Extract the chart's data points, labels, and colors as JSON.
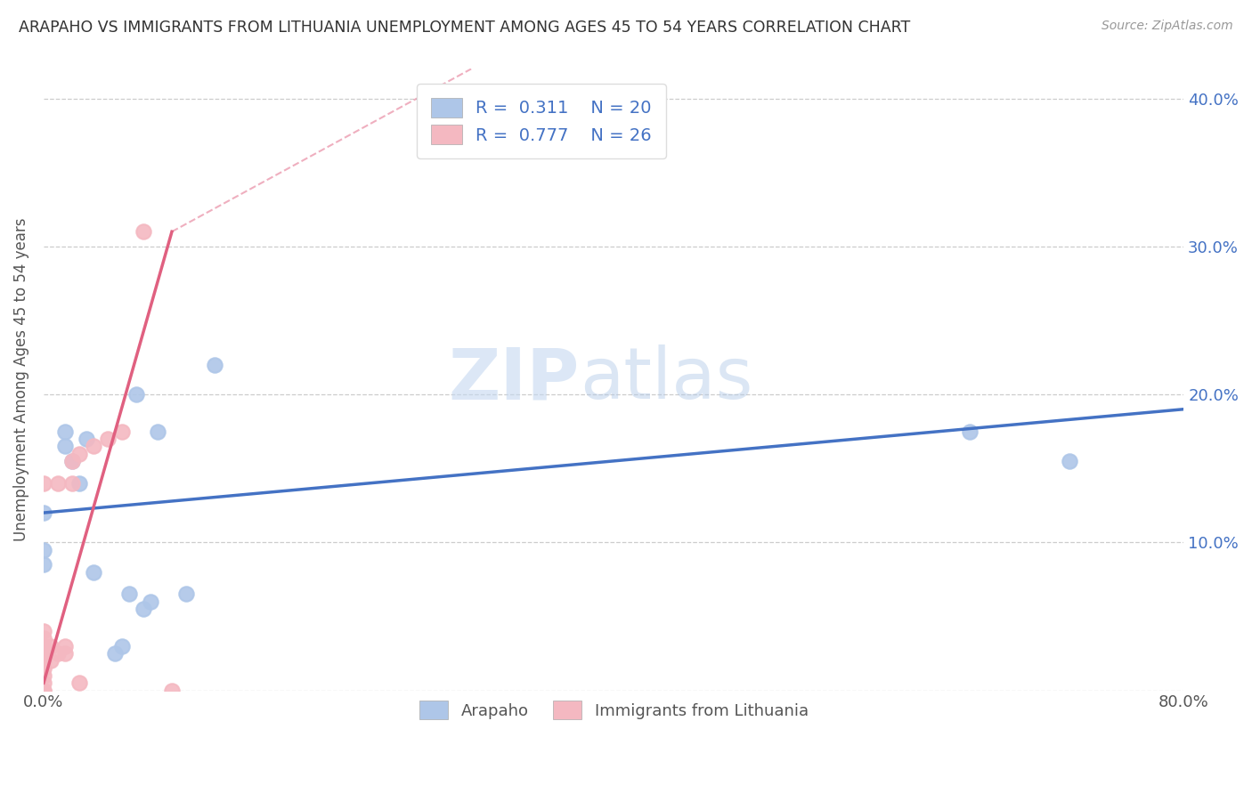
{
  "title": "ARAPAHO VS IMMIGRANTS FROM LITHUANIA UNEMPLOYMENT AMONG AGES 45 TO 54 YEARS CORRELATION CHART",
  "source": "Source: ZipAtlas.com",
  "ylabel": "Unemployment Among Ages 45 to 54 years",
  "xlim": [
    0.0,
    0.8
  ],
  "ylim": [
    0.0,
    0.42
  ],
  "xticks": [
    0.0,
    0.1,
    0.2,
    0.3,
    0.4,
    0.5,
    0.6,
    0.7,
    0.8
  ],
  "yticks": [
    0.0,
    0.1,
    0.2,
    0.3,
    0.4
  ],
  "arapaho_R": 0.311,
  "arapaho_N": 20,
  "lithuania_R": 0.777,
  "lithuania_N": 26,
  "arapaho_color": "#aec6e8",
  "lithuania_color": "#f4b8c1",
  "arapaho_line_color": "#4472c4",
  "lithuania_line_color": "#e06080",
  "arapaho_scatter_x": [
    0.0,
    0.0,
    0.0,
    0.015,
    0.015,
    0.02,
    0.025,
    0.03,
    0.035,
    0.05,
    0.055,
    0.06,
    0.065,
    0.07,
    0.075,
    0.08,
    0.1,
    0.12,
    0.65,
    0.72
  ],
  "arapaho_scatter_y": [
    0.085,
    0.095,
    0.12,
    0.175,
    0.165,
    0.155,
    0.14,
    0.17,
    0.08,
    0.025,
    0.03,
    0.065,
    0.2,
    0.055,
    0.06,
    0.175,
    0.065,
    0.22,
    0.175,
    0.155
  ],
  "lithuania_scatter_x": [
    0.0,
    0.0,
    0.0,
    0.0,
    0.0,
    0.0,
    0.0,
    0.0,
    0.0,
    0.0,
    0.0,
    0.005,
    0.005,
    0.01,
    0.01,
    0.015,
    0.015,
    0.02,
    0.02,
    0.025,
    0.025,
    0.035,
    0.045,
    0.055,
    0.07,
    0.09
  ],
  "lithuania_scatter_y": [
    0.0,
    0.0,
    0.005,
    0.01,
    0.015,
    0.02,
    0.025,
    0.03,
    0.035,
    0.04,
    0.14,
    0.02,
    0.03,
    0.025,
    0.14,
    0.025,
    0.03,
    0.14,
    0.155,
    0.005,
    0.16,
    0.165,
    0.17,
    0.175,
    0.31,
    0.0
  ],
  "arapaho_regline_x": [
    0.0,
    0.8
  ],
  "arapaho_regline_y": [
    0.12,
    0.19
  ],
  "lithuania_regline_x": [
    0.0,
    0.09
  ],
  "lithuania_regline_y": [
    0.005,
    0.31
  ],
  "lithuania_dashline_x": [
    0.09,
    0.3
  ],
  "lithuania_dashline_y": [
    0.31,
    0.42
  ],
  "watermark_part1": "ZIP",
  "watermark_part2": "atlas"
}
